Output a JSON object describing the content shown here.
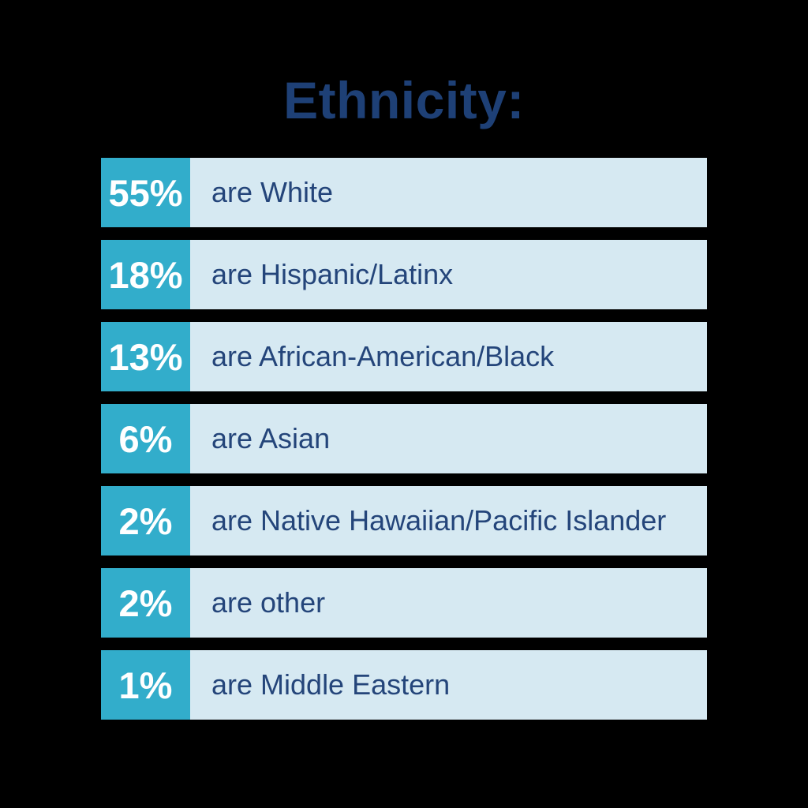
{
  "title": {
    "text": "Ethnicity:"
  },
  "colors": {
    "background": "#000000",
    "title": "#1e4076",
    "teal": "#32adcb",
    "row_background": "#d6e9f2",
    "label_text": "#24457a",
    "percent_text": "#ffffff"
  },
  "rows": [
    {
      "percent": "55%",
      "label": "are White"
    },
    {
      "percent": "18%",
      "label": "are Hispanic/Latinx"
    },
    {
      "percent": "13%",
      "label": "are African-American/Black"
    },
    {
      "percent": "6%",
      "label": "are Asian"
    },
    {
      "percent": "2%",
      "label": "are Native Hawaiian/Pacific Islander"
    },
    {
      "percent": "2%",
      "label": "are other"
    },
    {
      "percent": "1%",
      "label": "are Middle Eastern"
    }
  ],
  "chart_data": {
    "type": "table",
    "title": "Ethnicity:",
    "categories": [
      "White",
      "Hispanic/Latinx",
      "African-American/Black",
      "Asian",
      "Native Hawaiian/Pacific Islander",
      "other",
      "Middle Eastern"
    ],
    "values": [
      55,
      18,
      13,
      6,
      2,
      2,
      1
    ],
    "unit": "%",
    "legend": "none",
    "grid": false,
    "layout": "horizontal label rows, equal-width swatch blocks (not proportional bars)"
  }
}
